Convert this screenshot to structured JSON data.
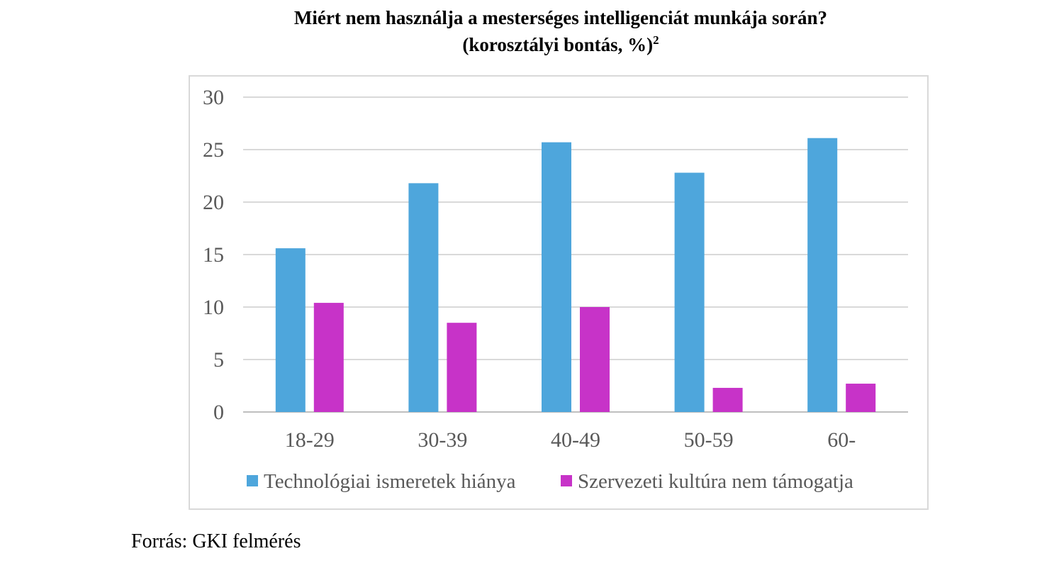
{
  "title_line1": "Miért nem használja a mesterséges intelligenciát munkája során?",
  "title_line2": "(korosztályi bontás, %)",
  "title_footnote": "2",
  "source": "Forrás: GKI felmérés",
  "chart_data": {
    "type": "bar",
    "categories": [
      "18-29",
      "30-39",
      "40-49",
      "50-59",
      "60-"
    ],
    "series": [
      {
        "name": "Technológiai ismeretek hiánya",
        "values": [
          15.6,
          21.8,
          25.7,
          22.8,
          26.1
        ],
        "color": "#4ea6dc"
      },
      {
        "name": "Szervezeti kultúra nem támogatja",
        "values": [
          10.4,
          8.5,
          10.0,
          2.3,
          2.7
        ],
        "color": "#c733c8"
      }
    ],
    "ylim": [
      0,
      30
    ],
    "yticks": [
      0,
      5,
      10,
      15,
      20,
      25,
      30
    ],
    "grid": true,
    "legend": "bottom"
  }
}
